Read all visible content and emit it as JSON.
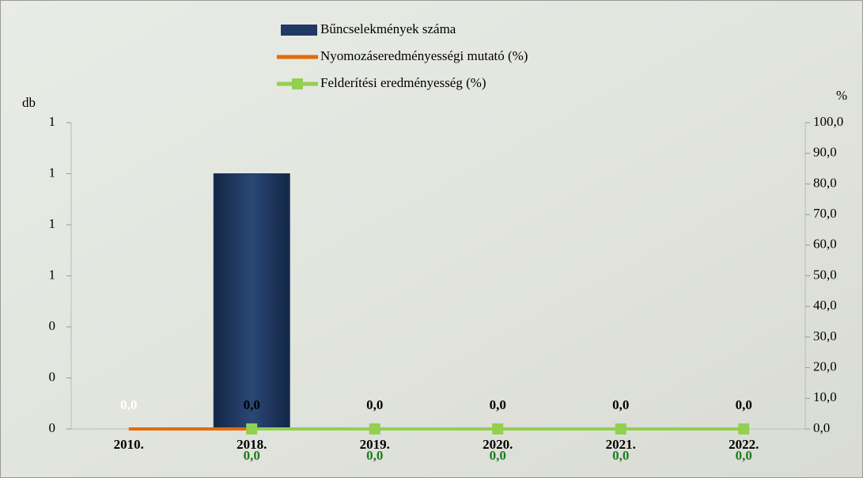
{
  "chart_data": {
    "type": "bar-line",
    "y_axis_title": "db",
    "y2_axis_title": "%",
    "categories": [
      "2010.",
      "2018.",
      "2019.",
      "2020.",
      "2021.",
      "2022."
    ],
    "series": [
      {
        "name": "Bűncselekmények száma",
        "type": "bar",
        "color": "#1f3864",
        "values": [
          0,
          1,
          0,
          0,
          0,
          0
        ]
      },
      {
        "name": "Nyomozáseredményességi mutató (%)",
        "type": "line",
        "axis": "y2",
        "color": "#e36c0a",
        "values": [
          0,
          0,
          0,
          0,
          0,
          0
        ],
        "value_labels": [
          "0,0",
          "0,0",
          "0,0",
          "0,0",
          "0,0",
          "0,0"
        ]
      },
      {
        "name": "Felderítési eredményesség (%)",
        "type": "line",
        "axis": "y2",
        "color": "#92d050",
        "values": [
          null,
          0,
          0,
          0,
          0,
          0
        ],
        "value_labels": [
          null,
          "0,0",
          "0,0",
          "0,0",
          "0,0",
          "0,0"
        ]
      }
    ],
    "ylim": [
      0,
      1.2
    ],
    "yticks": [
      0,
      {
        "value": 0.2,
        "label": "0"
      },
      {
        "value": 0.4,
        "label": "0"
      },
      {
        "value": 0.6,
        "label": "1"
      },
      {
        "value": 0.8,
        "label": "1"
      },
      {
        "value": 1.0,
        "label": "1"
      },
      {
        "value": 1.2,
        "label": "1"
      }
    ],
    "y2lim": [
      0,
      100
    ],
    "y2ticks": [
      {
        "value": 0,
        "label": "0,0"
      },
      {
        "value": 10,
        "label": "10,0"
      },
      {
        "value": 20,
        "label": "20,0"
      },
      {
        "value": 30,
        "label": "30,0"
      },
      {
        "value": 40,
        "label": "40,0"
      },
      {
        "value": 50,
        "label": "50,0"
      },
      {
        "value": 60,
        "label": "60,0"
      },
      {
        "value": 70,
        "label": "70,0"
      },
      {
        "value": 80,
        "label": "80,0"
      },
      {
        "value": 90,
        "label": "90,0"
      },
      {
        "value": 100,
        "label": "100,0"
      }
    ],
    "legend": "top"
  }
}
